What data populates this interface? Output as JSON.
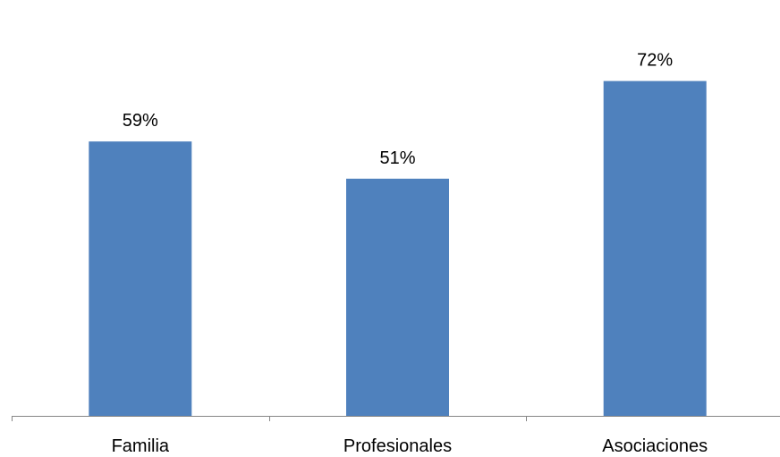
{
  "chart_data": {
    "type": "bar",
    "categories": [
      "Familia",
      "Profesionales",
      "Asociaciones"
    ],
    "values": [
      59,
      51,
      72
    ],
    "value_labels": [
      "59%",
      "51%",
      "72%"
    ],
    "unit": "%",
    "title": "",
    "xlabel": "",
    "ylabel": "",
    "ylim": [
      0,
      80
    ],
    "grid": false,
    "legend": "none",
    "bar_color": "#4F81BD",
    "axis_color": "#868686"
  }
}
